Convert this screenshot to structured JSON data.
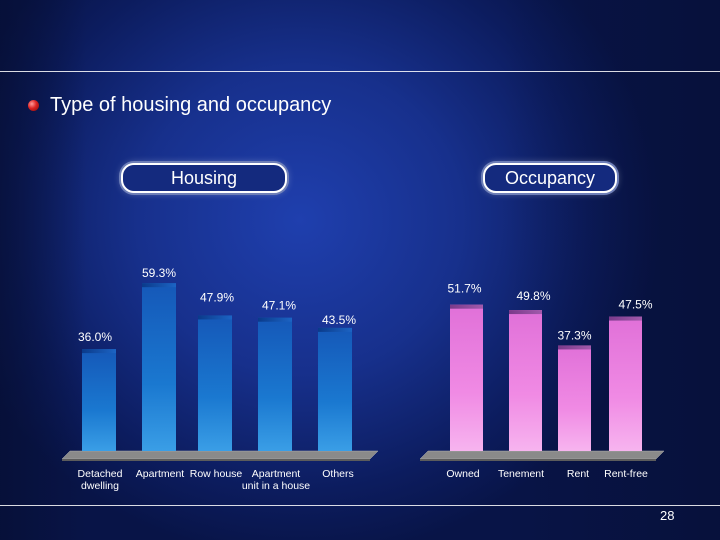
{
  "slide": {
    "title": "Type of housing and occupancy",
    "page_number": "28"
  },
  "chart_data": [
    {
      "type": "bar",
      "title": "Housing",
      "categories": [
        "Detached dwelling",
        "Apartment",
        "Row house",
        "Apartment unit in a house",
        "Others"
      ],
      "values": [
        36.0,
        59.3,
        47.9,
        47.1,
        43.5
      ],
      "data_labels": [
        "36.0%",
        "59.3%",
        "47.9%",
        "47.1%",
        "43.5%"
      ],
      "ylim": [
        0,
        65
      ],
      "grid": false,
      "bar_color": "#1a73c9"
    },
    {
      "type": "bar",
      "title": "Occupancy",
      "categories": [
        "Owned",
        "Tenement",
        "Rent",
        "Rent-free"
      ],
      "values": [
        51.7,
        49.8,
        37.3,
        47.5
      ],
      "data_labels": [
        "51.7%",
        "49.8%",
        "37.3%",
        "47.5%"
      ],
      "ylim": [
        0,
        65
      ],
      "grid": false,
      "bar_color": "#f08fe0"
    }
  ]
}
